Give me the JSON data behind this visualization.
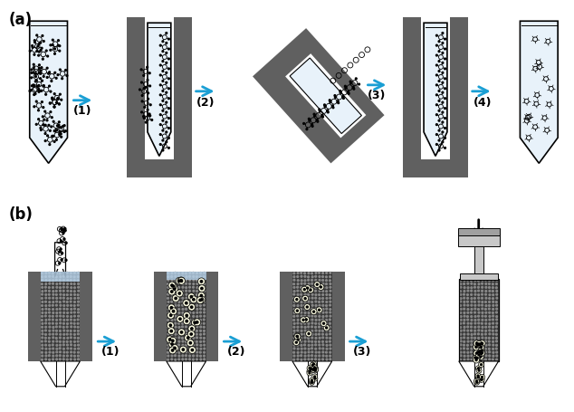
{
  "fig_width": 6.34,
  "fig_height": 4.55,
  "dpi": 100,
  "bg_color": "#ffffff",
  "label_a": "(a)",
  "label_b": "(b)",
  "arrow_color": "#1a9fd4",
  "dark_gray": "#606060",
  "mid_gray": "#a0a0a0",
  "light_gray": "#c8c8c8",
  "tube_fill": "#e8f2fa",
  "matrix_dark": "#383838",
  "step_labels_a": [
    "(1)",
    "(2)",
    "(3)",
    "(4)"
  ],
  "step_labels_b": [
    "(1)",
    "(2)",
    "(3)"
  ]
}
